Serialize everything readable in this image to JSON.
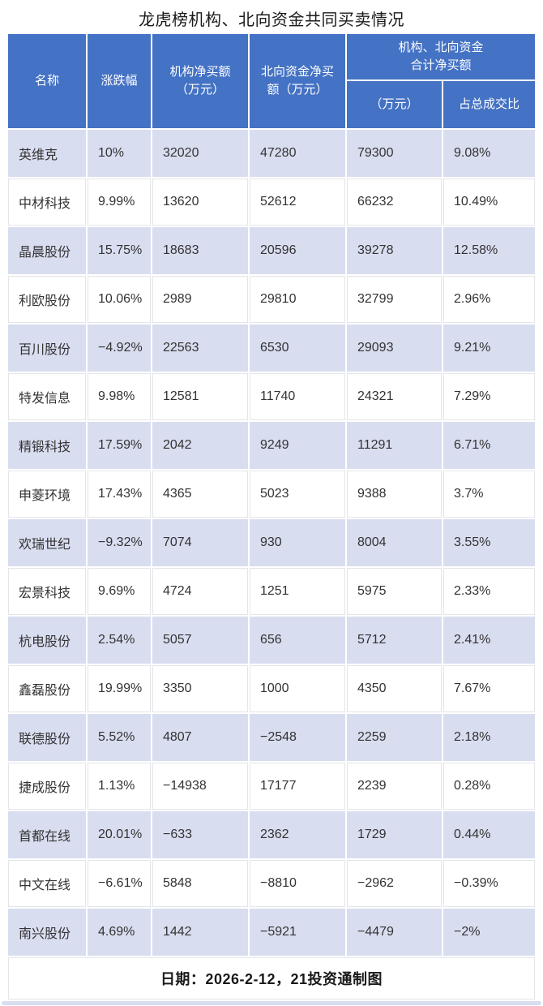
{
  "title": "龙虎榜机构、北向资金共同买卖情况",
  "footer": "日期：2026-2-12，21投资通制图",
  "colors": {
    "header_bg": "#4472C4",
    "header_text": "#FFFFFF",
    "band_row_bg": "#D9DDF0",
    "white_row_bg": "#FFFFFF",
    "grid_line": "#E4E5E9",
    "body_text": "#333333"
  },
  "chart_data": {
    "type": "table",
    "title": "龙虎榜机构、北向资金共同买卖情况",
    "header_lines": {
      "name": "名称",
      "change": "涨跌幅",
      "inst": [
        "机构净买额",
        "（万元）"
      ],
      "north": [
        "北向资金净买",
        "额（万元）"
      ],
      "combined": [
        "机构、北向资金",
        "合计净买额"
      ],
      "combined_amount": "（万元）",
      "combined_ratio": "占总成交比"
    },
    "columns": [
      "名称",
      "涨跌幅",
      "机构净买额（万元）",
      "北向资金净买额（万元）",
      "机构、北向资金合计净买额（万元）",
      "机构、北向资金合计净买额占总成交比"
    ],
    "rows": [
      [
        "英维克",
        "10%",
        "32020",
        "47280",
        "79300",
        "9.08%"
      ],
      [
        "中材科技",
        "9.99%",
        "13620",
        "52612",
        "66232",
        "10.49%"
      ],
      [
        "晶晨股份",
        "15.75%",
        "18683",
        "20596",
        "39278",
        "12.58%"
      ],
      [
        "利欧股份",
        "10.06%",
        "2989",
        "29810",
        "32799",
        "2.96%"
      ],
      [
        "百川股份",
        "−4.92%",
        "22563",
        "6530",
        "29093",
        "9.21%"
      ],
      [
        "特发信息",
        "9.98%",
        "12581",
        "11740",
        "24321",
        "7.29%"
      ],
      [
        "精锻科技",
        "17.59%",
        "2042",
        "9249",
        "11291",
        "6.71%"
      ],
      [
        "申菱环境",
        "17.43%",
        "4365",
        "5023",
        "9388",
        "3.7%"
      ],
      [
        "欢瑞世纪",
        "−9.32%",
        "7074",
        "930",
        "8004",
        "3.55%"
      ],
      [
        "宏景科技",
        "9.69%",
        "4724",
        "1251",
        "5975",
        "2.33%"
      ],
      [
        "杭电股份",
        "2.54%",
        "5057",
        "656",
        "5712",
        "2.41%"
      ],
      [
        "鑫磊股份",
        "19.99%",
        "3350",
        "1000",
        "4350",
        "7.67%"
      ],
      [
        "联德股份",
        "5.52%",
        "4807",
        "−2548",
        "2259",
        "2.18%"
      ],
      [
        "捷成股份",
        "1.13%",
        "−14938",
        "17177",
        "2239",
        "0.28%"
      ],
      [
        "首都在线",
        "20.01%",
        "−633",
        "2362",
        "1729",
        "0.44%"
      ],
      [
        "中文在线",
        "−6.61%",
        "5848",
        "−8810",
        "−2962",
        "−0.39%"
      ],
      [
        "南兴股份",
        "4.69%",
        "1442",
        "−5921",
        "−4479",
        "−2%"
      ]
    ]
  }
}
